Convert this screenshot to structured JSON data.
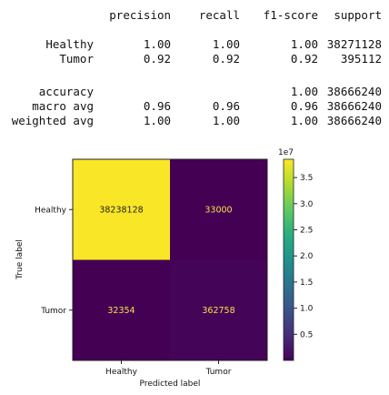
{
  "report": {
    "headers": [
      "precision",
      "recall",
      "f1-score",
      "support"
    ],
    "rows": [
      {
        "label": "Healthy",
        "precision": "1.00",
        "recall": "1.00",
        "f1": "1.00",
        "support": "38271128"
      },
      {
        "label": "Tumor",
        "precision": "0.92",
        "recall": "0.92",
        "f1": "0.92",
        "support": "395112"
      }
    ],
    "summary": [
      {
        "label": "accuracy",
        "precision": "",
        "recall": "",
        "f1": "1.00",
        "support": "38666240"
      },
      {
        "label": "macro avg",
        "precision": "0.96",
        "recall": "0.96",
        "f1": "0.96",
        "support": "38666240"
      },
      {
        "label": "weighted avg",
        "precision": "1.00",
        "recall": "1.00",
        "f1": "1.00",
        "support": "38666240"
      }
    ]
  },
  "chart_data": {
    "type": "heatmap",
    "x_categories": [
      "Healthy",
      "Tumor"
    ],
    "y_categories": [
      "Healthy",
      "Tumor"
    ],
    "values": [
      [
        38238128,
        33000
      ],
      [
        32354,
        362758
      ]
    ],
    "xlabel": "Predicted label",
    "ylabel": "True label",
    "colormap": "viridis",
    "colorbar": {
      "ticks": [
        0.5,
        1.0,
        1.5,
        2.0,
        2.5,
        3.0,
        3.5
      ],
      "tick_labels": [
        "0.5",
        "1.0",
        "1.5",
        "2.0",
        "2.5",
        "3.0",
        "3.5"
      ],
      "exponent_label": "1e7",
      "range": [
        0,
        3.85
      ]
    },
    "text_colors": {
      "light": "#222222",
      "dark": "#f5e04a"
    }
  }
}
